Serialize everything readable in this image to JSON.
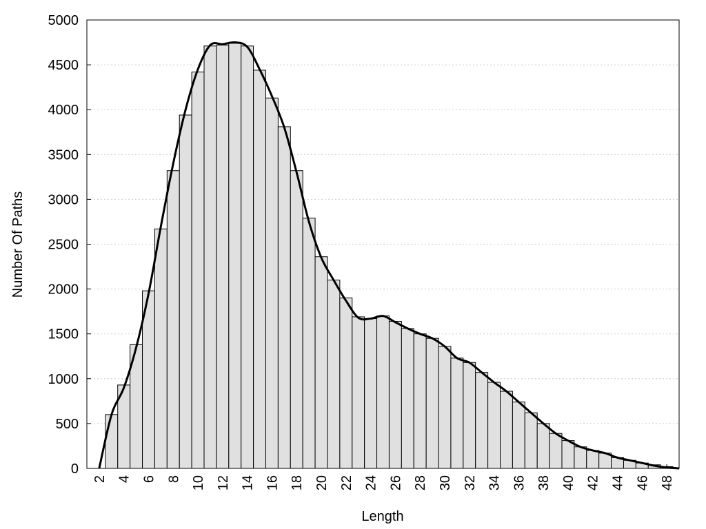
{
  "chart_data": {
    "type": "histogram",
    "x_label": "Length",
    "y_label": "Number Of Paths",
    "bins": [
      2.5,
      3.5,
      4.5,
      5.5,
      6.5,
      7.5,
      8.5,
      9.5,
      10.5,
      11.5,
      12.5,
      13.5,
      14.5,
      15.5,
      16.5,
      17.5,
      18.5,
      19.5,
      20.5,
      21.5,
      22.5,
      23.5,
      24.5,
      25.5,
      26.5,
      27.5,
      28.5,
      29.5,
      30.5,
      31.5,
      32.5,
      33.5,
      34.5,
      35.5,
      36.5,
      37.5,
      38.5,
      39.5,
      40.5,
      41.5,
      42.5,
      43.5,
      44.5,
      45.5,
      46.5,
      47.5,
      48.5
    ],
    "counts": [
      600,
      930,
      1380,
      1980,
      2670,
      3320,
      3940,
      4420,
      4710,
      4720,
      4740,
      4710,
      4440,
      4130,
      3810,
      3320,
      2790,
      2360,
      2100,
      1900,
      1690,
      1670,
      1700,
      1640,
      1560,
      1500,
      1450,
      1360,
      1230,
      1180,
      1070,
      960,
      860,
      740,
      620,
      500,
      390,
      310,
      240,
      200,
      170,
      120,
      90,
      60,
      40,
      20
    ],
    "color": "#e0e0e0",
    "line": {
      "x": [
        2,
        3,
        4,
        5,
        6,
        7,
        8,
        9,
        10,
        11,
        12,
        13,
        14,
        15,
        16,
        17,
        18,
        19,
        20,
        21,
        22,
        23,
        24,
        25,
        26,
        27,
        28,
        29,
        30,
        31,
        32,
        33,
        34,
        35,
        36,
        37,
        38,
        39,
        40,
        41,
        42,
        43,
        44,
        45,
        46,
        47,
        48,
        49
      ],
      "values": [
        0,
        600,
        900,
        1350,
        1950,
        2700,
        3400,
        4000,
        4450,
        4720,
        4730,
        4750,
        4700,
        4450,
        4150,
        3800,
        3300,
        2750,
        2350,
        2100,
        1870,
        1680,
        1670,
        1700,
        1630,
        1560,
        1500,
        1450,
        1360,
        1230,
        1180,
        1070,
        960,
        860,
        740,
        620,
        500,
        390,
        310,
        240,
        200,
        170,
        120,
        90,
        60,
        30,
        10,
        0
      ],
      "color": "#000000"
    },
    "xlim": [
      1,
      49
    ],
    "ylim": [
      0,
      5000
    ],
    "xticks": [
      2,
      4,
      6,
      8,
      10,
      12,
      14,
      16,
      18,
      20,
      22,
      24,
      26,
      28,
      30,
      32,
      34,
      36,
      38,
      40,
      42,
      44,
      46,
      48
    ],
    "yticks": [
      0,
      500,
      1000,
      1500,
      2000,
      2500,
      3000,
      3500,
      4000,
      4500,
      5000
    ],
    "grid": true
  }
}
